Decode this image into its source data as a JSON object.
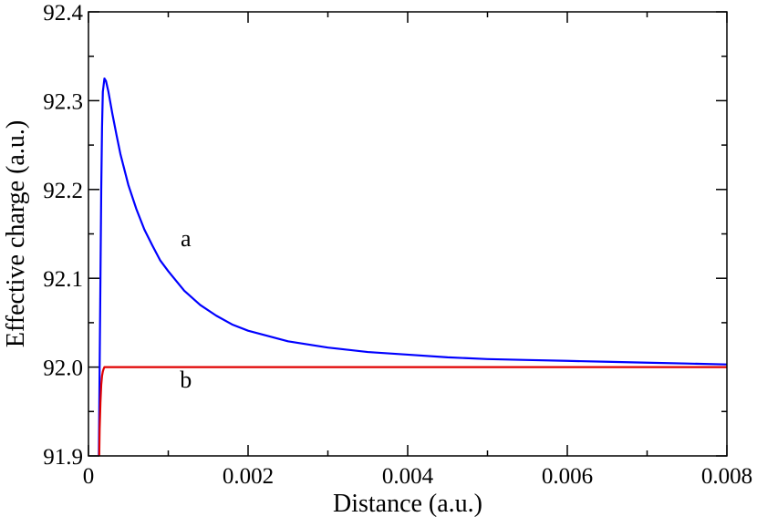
{
  "chart_data": {
    "type": "line",
    "title": "",
    "xlabel": "Distance (a.u.)",
    "ylabel": "Effective charge (a.u.)",
    "xlim": [
      0,
      0.008
    ],
    "ylim": [
      91.9,
      92.4
    ],
    "x_ticks": [
      0,
      0.002,
      0.004,
      0.006,
      0.008
    ],
    "x_tick_labels": [
      "0",
      "0.002",
      "0.004",
      "0.006",
      "0.008"
    ],
    "y_ticks": [
      91.9,
      92.0,
      92.1,
      92.2,
      92.3,
      92.4
    ],
    "y_tick_labels": [
      "91.9",
      "92.0",
      "92.1",
      "92.2",
      "92.3",
      "92.4"
    ],
    "grid": false,
    "legend": "none",
    "series": [
      {
        "color": "#0000ff",
        "x": [
          0.00013,
          0.00014,
          0.00015,
          0.00016,
          0.00017,
          0.00018,
          0.0002,
          0.00022,
          0.00025,
          0.0003,
          0.00035,
          0.0004,
          0.0005,
          0.0006,
          0.0007,
          0.0008,
          0.0009,
          0.001,
          0.0012,
          0.0014,
          0.0016,
          0.0018,
          0.002,
          0.0025,
          0.003,
          0.0035,
          0.004,
          0.0045,
          0.005,
          0.0055,
          0.006,
          0.0065,
          0.007,
          0.0075,
          0.008
        ],
        "values": [
          91.9,
          92.0,
          92.1,
          92.2,
          92.27,
          92.31,
          92.325,
          92.322,
          92.31,
          92.285,
          92.262,
          92.24,
          92.205,
          92.178,
          92.155,
          92.137,
          92.12,
          92.108,
          92.086,
          92.07,
          92.058,
          92.048,
          92.041,
          92.029,
          92.022,
          92.017,
          92.014,
          92.011,
          92.009,
          92.008,
          92.007,
          92.006,
          92.005,
          92.004,
          92.003
        ]
      },
      {
        "color": "#e00000",
        "x": [
          0.000135,
          0.00014,
          0.00015,
          0.00016,
          0.00017,
          0.00018,
          0.00019,
          0.0002,
          0.00022,
          0.00025,
          0.0003,
          0.001,
          0.002,
          0.004,
          0.006,
          0.008
        ],
        "values": [
          91.9,
          91.93,
          91.96,
          91.98,
          91.99,
          91.995,
          91.998,
          92.0,
          92.0,
          92.0,
          92.0,
          92.0,
          92.0,
          92.0,
          92.0,
          92.0
        ]
      }
    ],
    "annotations": [
      {
        "text": "a",
        "x": 0.00122,
        "y": 92.136
      },
      {
        "text": "b",
        "x": 0.00122,
        "y": 91.977
      }
    ]
  }
}
